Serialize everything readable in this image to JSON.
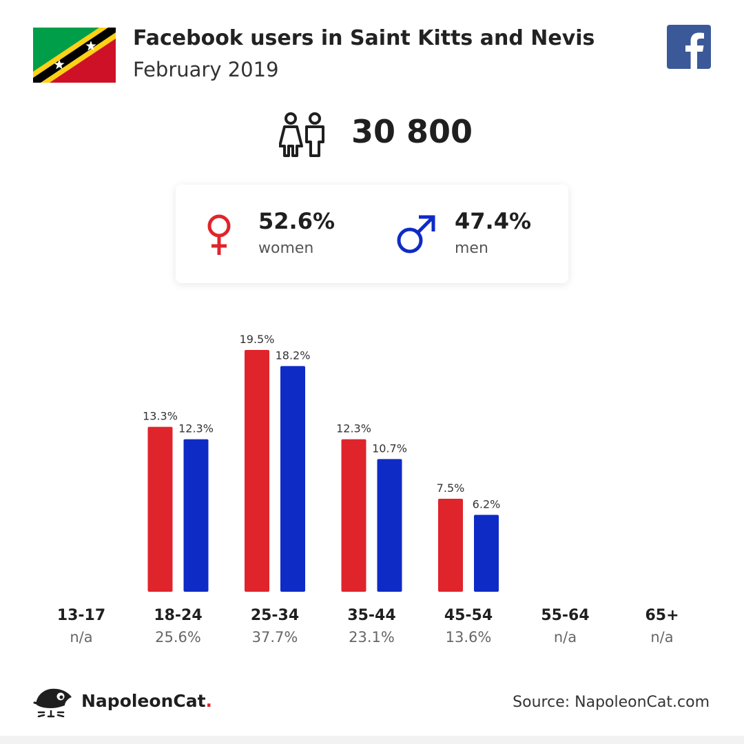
{
  "header": {
    "title": "Facebook users in Saint Kitts and Nevis",
    "subtitle": "February 2019"
  },
  "icons": {
    "flag": "saint-kitts-and-nevis-flag",
    "social": "facebook-icon",
    "users": "people-icon",
    "female": "female-symbol-icon",
    "male": "male-symbol-icon",
    "brand_logo": "napoleoncat-logo"
  },
  "summary": {
    "total_users": "30 800",
    "women_pct": "52.6%",
    "women_label": "women",
    "men_pct": "47.4%",
    "men_label": "men"
  },
  "colors": {
    "women": "#e0242b",
    "men": "#0f2bc5",
    "facebook": "#3b5998"
  },
  "chart_data": {
    "type": "bar",
    "categories": [
      "13-17",
      "18-24",
      "25-34",
      "35-44",
      "45-54",
      "55-64",
      "65+"
    ],
    "series": [
      {
        "name": "women",
        "values": [
          null,
          13.3,
          19.5,
          12.3,
          7.5,
          null,
          null
        ]
      },
      {
        "name": "men",
        "values": [
          null,
          12.3,
          18.2,
          10.7,
          6.2,
          null,
          null
        ]
      }
    ],
    "value_labels": {
      "women": [
        "",
        "13.3%",
        "19.5%",
        "12.3%",
        "7.5%",
        "",
        ""
      ],
      "men": [
        "",
        "12.3%",
        "18.2%",
        "10.7%",
        "6.2%",
        "",
        ""
      ]
    },
    "totals": [
      "n/a",
      "25.6%",
      "37.7%",
      "23.1%",
      "13.6%",
      "n/a",
      "n/a"
    ],
    "legend": "none",
    "grid": false
  },
  "footer": {
    "brand": "NapoleonCat",
    "brand_dot": ".",
    "source": "Source: NapoleonCat.com"
  }
}
